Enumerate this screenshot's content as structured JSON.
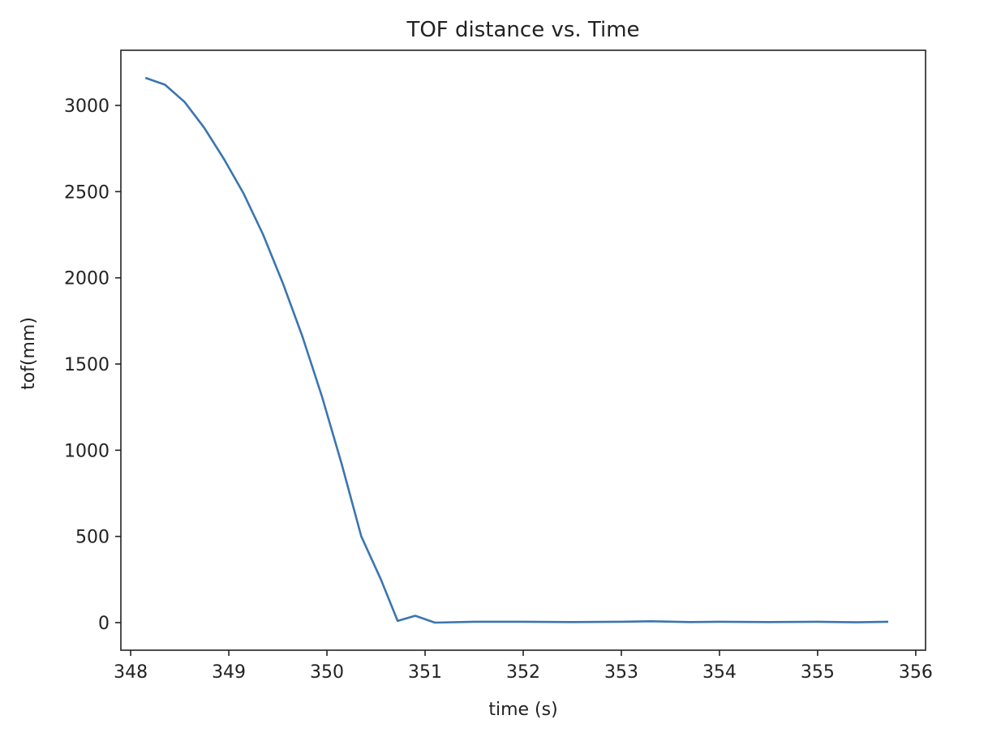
{
  "chart_data": {
    "type": "line",
    "title": "TOF distance vs. Time",
    "xlabel": "time (s)",
    "ylabel": "tof(mm)",
    "xlim": [
      347.9,
      356.1
    ],
    "ylim": [
      -160,
      3320
    ],
    "xticks": [
      348,
      349,
      350,
      351,
      352,
      353,
      354,
      355,
      356
    ],
    "yticks": [
      0,
      500,
      1000,
      1500,
      2000,
      2500,
      3000
    ],
    "grid": false,
    "legend": "none",
    "series": [
      {
        "color": "#3b75af",
        "x": [
          348.15,
          348.35,
          348.55,
          348.75,
          348.95,
          349.15,
          349.35,
          349.55,
          349.75,
          349.95,
          350.15,
          350.35,
          350.55,
          350.72,
          350.9,
          351.1,
          351.5,
          352.0,
          352.5,
          353.0,
          353.3,
          353.7,
          354.0,
          354.5,
          355.0,
          355.4,
          355.72
        ],
        "y": [
          3160,
          3120,
          3020,
          2870,
          2690,
          2490,
          2250,
          1970,
          1660,
          1310,
          920,
          500,
          250,
          10,
          40,
          0,
          5,
          5,
          3,
          5,
          8,
          3,
          5,
          3,
          5,
          2,
          5
        ]
      }
    ]
  }
}
